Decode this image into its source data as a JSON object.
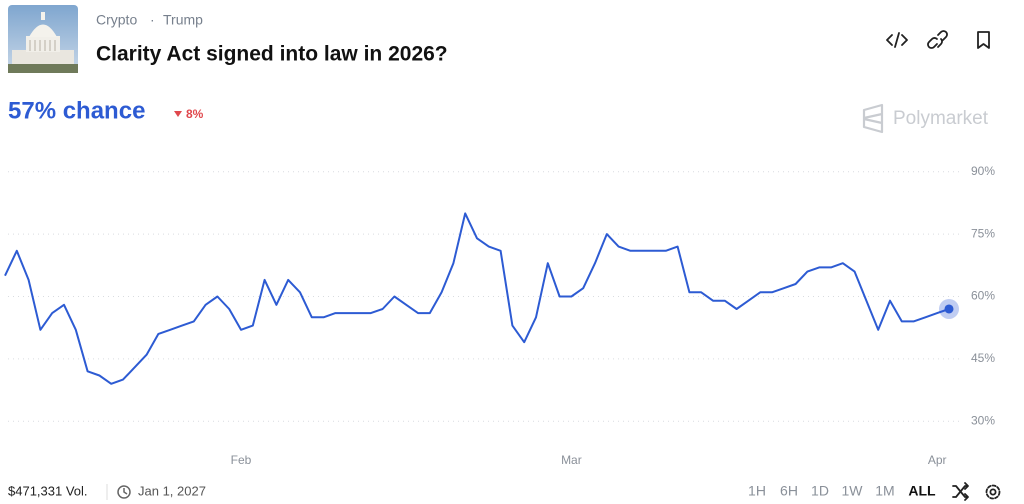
{
  "header": {
    "tags": [
      "Crypto",
      "Trump"
    ],
    "separator": "·",
    "title": "Clarity Act signed into law in 2026?",
    "chance": "57% chance",
    "change": "8%",
    "brand": "Polymarket"
  },
  "chart_data": {
    "type": "line",
    "color": "#2d5bd3",
    "grid": true,
    "categories": [
      null,
      null,
      null,
      null,
      null,
      null,
      null,
      null,
      null,
      null,
      null,
      null,
      null,
      null,
      null,
      null,
      null,
      null,
      null,
      null,
      "Feb",
      null,
      null,
      null,
      null,
      null,
      null,
      null,
      null,
      null,
      null,
      null,
      null,
      null,
      null,
      null,
      null,
      null,
      null,
      null,
      null,
      null,
      null,
      null,
      null,
      null,
      null,
      null,
      "Mar",
      null,
      null,
      null,
      null,
      null,
      null,
      null,
      null,
      null,
      null,
      null,
      null,
      null,
      null,
      null,
      null,
      null,
      null,
      null,
      null,
      null,
      null,
      null,
      null,
      null,
      null,
      null,
      null,
      null,
      null,
      "Apr",
      null
    ],
    "values": [
      65,
      71,
      64,
      52,
      56,
      58,
      52,
      42,
      41,
      39,
      40,
      43,
      46,
      51,
      52,
      53,
      54,
      58,
      60,
      57,
      52,
      53,
      64,
      58,
      64,
      61,
      55,
      55,
      56,
      56,
      56,
      56,
      57,
      60,
      58,
      56,
      56,
      61,
      68,
      80,
      74,
      72,
      71,
      53,
      49,
      55,
      68,
      60,
      60,
      62,
      68,
      75,
      72,
      71,
      71,
      71,
      71,
      72,
      61,
      61,
      59,
      59,
      57,
      59,
      61,
      61,
      62,
      63,
      66,
      67,
      67,
      68,
      66,
      59,
      52,
      59,
      54,
      54,
      55,
      56,
      57
    ],
    "ylim": [
      25,
      95
    ],
    "yticks": [
      {
        "value": 30,
        "label": "30%"
      },
      {
        "value": 45,
        "label": "45%"
      },
      {
        "value": 60,
        "label": "60%"
      },
      {
        "value": 75,
        "label": "75%"
      },
      {
        "value": 90,
        "label": "90%"
      }
    ]
  },
  "footer": {
    "volume": "$471,331 Vol.",
    "end_date": "Jan 1, 2027",
    "ranges": [
      "1H",
      "6H",
      "1D",
      "1W",
      "1M",
      "ALL"
    ],
    "active_range": 5
  }
}
